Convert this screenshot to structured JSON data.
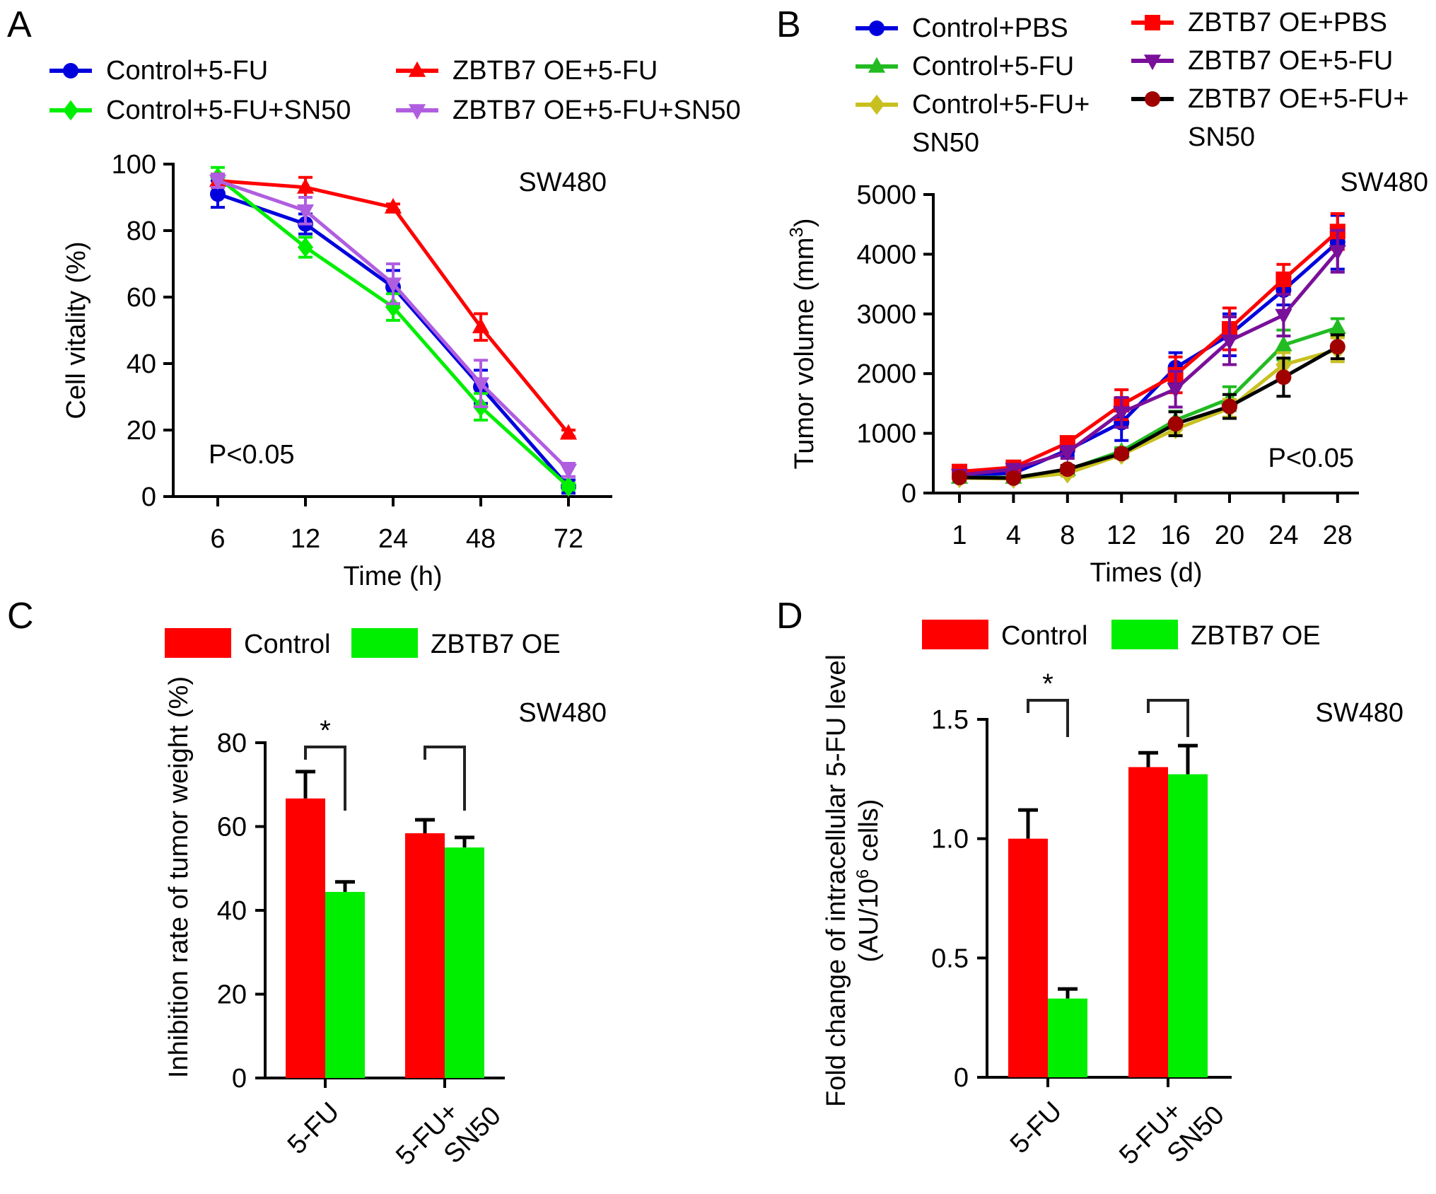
{
  "colors": {
    "red": "#ff0000",
    "green": "#00ee00",
    "blue": "#0000dd",
    "violet": "#b05ee0",
    "green_b": "#22bb22",
    "yellow": "#c8c020",
    "purple": "#7a0f9a",
    "darkred": "#a00000",
    "black": "#000000"
  },
  "chart_data": [
    {
      "panel": "A",
      "type": "line",
      "title": "",
      "annotation_top_right": "SW480",
      "annotation_bottom_left": "P<0.05",
      "xlabel": "Time (h)",
      "ylabel": "Cell vitality (%)",
      "x_categories": [
        "6",
        "12",
        "24",
        "48",
        "72"
      ],
      "ylim": [
        0,
        100
      ],
      "yticks": [
        0,
        20,
        40,
        60,
        80,
        100
      ],
      "legend_placement": "top",
      "series": [
        {
          "name": "Control+5-FU",
          "color": "blue",
          "marker": "circle",
          "values": [
            91,
            82,
            63,
            33,
            3
          ],
          "errors": [
            4,
            3,
            5,
            5,
            2
          ]
        },
        {
          "name": "Control+5-FU+SN50",
          "color": "green",
          "marker": "diamond",
          "values": [
            96,
            75,
            57,
            27,
            3
          ],
          "errors": [
            3,
            3,
            4,
            4,
            1
          ]
        },
        {
          "name": "ZBTB7 OE+5-FU",
          "color": "red",
          "marker": "triangle-up",
          "values": [
            95,
            93,
            87,
            51,
            19
          ],
          "errors": [
            2,
            3,
            1,
            4,
            1
          ]
        },
        {
          "name": "ZBTB7 OE+5-FU+SN50",
          "color": "violet",
          "marker": "triangle-down",
          "values": [
            95,
            86,
            64,
            34,
            8
          ],
          "errors": [
            2,
            4,
            6,
            7,
            2
          ]
        }
      ]
    },
    {
      "panel": "B",
      "type": "line",
      "title": "",
      "annotation_top_right": "SW480",
      "annotation_bottom_right": "P<0.05",
      "xlabel": "Times (d)",
      "ylabel": "Tumor volume (mm",
      "ylabel_sup": "3",
      "ylabel_end": ")",
      "x_categories": [
        "1",
        "4",
        "8",
        "12",
        "16",
        "20",
        "24",
        "28"
      ],
      "ylim": [
        0,
        5000
      ],
      "yticks": [
        0,
        1000,
        2000,
        3000,
        4000,
        5000
      ],
      "legend_placement": "top",
      "series": [
        {
          "name": "Control+PBS",
          "legend_lines": [
            "Control+PBS"
          ],
          "color": "blue",
          "marker": "circle",
          "values": [
            300,
            330,
            720,
            1180,
            2100,
            2650,
            3400,
            4200
          ],
          "errors": [
            60,
            60,
            90,
            300,
            250,
            350,
            250,
            450
          ]
        },
        {
          "name": "Control+5-FU",
          "legend_lines": [
            "Control+5-FU"
          ],
          "color": "green_b",
          "marker": "triangle-up",
          "values": [
            260,
            260,
            390,
            700,
            1220,
            1580,
            2480,
            2770
          ],
          "errors": [
            50,
            50,
            60,
            60,
            150,
            200,
            250,
            150
          ]
        },
        {
          "name": "Control+5-FU+SN50",
          "legend_lines": [
            "Control+5-FU+",
            "SN50"
          ],
          "color": "yellow",
          "marker": "diamond",
          "values": [
            250,
            240,
            330,
            640,
            1070,
            1420,
            2150,
            2400
          ],
          "errors": [
            40,
            40,
            50,
            60,
            100,
            150,
            200,
            200
          ]
        },
        {
          "name": "ZBTB7 OE+PBS",
          "legend_lines": [
            "ZBTB7 OE+PBS"
          ],
          "color": "red",
          "marker": "square",
          "values": [
            360,
            430,
            840,
            1480,
            1980,
            2750,
            3580,
            4380
          ],
          "errors": [
            60,
            60,
            100,
            250,
            300,
            350,
            250,
            300
          ]
        },
        {
          "name": "ZBTB7 OE+5-FU",
          "legend_lines": [
            "ZBTB7 OE+5-FU"
          ],
          "color": "purple",
          "marker": "triangle-down",
          "values": [
            300,
            400,
            680,
            1350,
            1740,
            2550,
            2980,
            4050
          ],
          "errors": [
            50,
            60,
            100,
            250,
            300,
            400,
            350,
            350
          ]
        },
        {
          "name": "ZBTB7 OE+5-FU+SN50",
          "legend_lines": [
            "ZBTB7 OE+5-FU+",
            "SN50"
          ],
          "color": "darkred",
          "marker": "circle",
          "line_color": "black",
          "values": [
            260,
            250,
            400,
            660,
            1160,
            1450,
            1940,
            2450
          ],
          "errors": [
            40,
            40,
            60,
            60,
            200,
            200,
            320,
            200
          ]
        }
      ]
    },
    {
      "panel": "C",
      "type": "bar",
      "title": "",
      "annotation_top_right": "SW480",
      "xlabel": "",
      "ylabel": "Inhibition rate of tumor weight (%)",
      "categories": [
        "5-FU",
        "5-FU+\nSN50"
      ],
      "category_lines": [
        [
          "5-FU"
        ],
        [
          "5-FU+",
          "SN50"
        ]
      ],
      "ylim": [
        0,
        80
      ],
      "yticks": [
        0,
        20,
        40,
        60,
        80
      ],
      "legend_placement": "top",
      "series": [
        {
          "name": "Control",
          "color": "red",
          "values": [
            66.7,
            58.4
          ],
          "errors": [
            6.4,
            3.2
          ]
        },
        {
          "name": "ZBTB7 OE",
          "color": "green",
          "values": [
            44.4,
            55.0
          ],
          "errors": [
            2.4,
            2.4
          ]
        }
      ],
      "significance": [
        "*",
        ""
      ]
    },
    {
      "panel": "D",
      "type": "bar",
      "title": "",
      "annotation_top_right": "SW480",
      "xlabel": "",
      "ylabel_line1": "Fold change of intracellular 5-FU level",
      "ylabel_line2_pre": "(AU/10",
      "ylabel_line2_sup": "6",
      "ylabel_line2_post": " cells)",
      "categories": [
        "5-FU",
        "5-FU+\nSN50"
      ],
      "category_lines": [
        [
          "5-FU"
        ],
        [
          "5-FU+",
          "SN50"
        ]
      ],
      "ylim": [
        0,
        1.5
      ],
      "yticks": [
        0,
        0.5,
        1.0,
        1.5
      ],
      "ytick_labels": [
        "0",
        "0.5",
        "1.0",
        "1.5"
      ],
      "legend_placement": "top",
      "series": [
        {
          "name": "Control",
          "color": "red",
          "values": [
            1.0,
            1.3
          ],
          "errors": [
            0.12,
            0.06
          ]
        },
        {
          "name": "ZBTB7 OE",
          "color": "green",
          "values": [
            0.33,
            1.27
          ],
          "errors": [
            0.04,
            0.12
          ]
        }
      ],
      "significance": [
        "*",
        ""
      ]
    }
  ],
  "panels": {
    "A": {
      "letter": "A"
    },
    "B": {
      "letter": "B"
    },
    "C": {
      "letter": "C"
    },
    "D": {
      "letter": "D"
    }
  }
}
